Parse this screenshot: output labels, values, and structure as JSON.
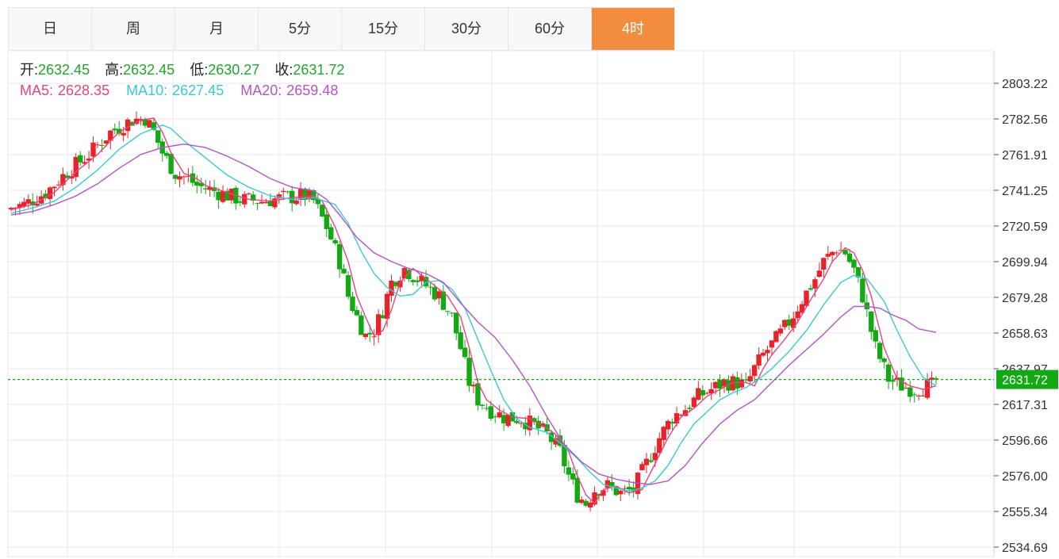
{
  "tabs": [
    {
      "label": "日",
      "active": false
    },
    {
      "label": "周",
      "active": false
    },
    {
      "label": "月",
      "active": false
    },
    {
      "label": "5分",
      "active": false
    },
    {
      "label": "15分",
      "active": false
    },
    {
      "label": "30分",
      "active": false
    },
    {
      "label": "60分",
      "active": false
    },
    {
      "label": "4时",
      "active": true
    }
  ],
  "info": {
    "open_label": "开:",
    "open": "2632.45",
    "high_label": "高:",
    "high": "2632.45",
    "low_label": "低:",
    "low": "2630.27",
    "close_label": "收:",
    "close": "2631.72",
    "ma5_label": "MA5:",
    "ma5": "2628.35",
    "ma10_label": "MA10:",
    "ma10": "2627.45",
    "ma20_label": "MA20:",
    "ma20": "2659.48"
  },
  "colors": {
    "up": "#e8232c",
    "down": "#12a914",
    "ma5": "#e8447c",
    "ma10": "#3cc8d8",
    "ma20": "#b454c8",
    "grid": "#e6eaee",
    "last_price_bg": "#12a914"
  },
  "chart_data": {
    "type": "candlestick",
    "y_ticks": [
      "2803.22",
      "2782.56",
      "2761.91",
      "2741.25",
      "2720.59",
      "2699.94",
      "2679.28",
      "2658.63",
      "2637.97",
      "2617.31",
      "2596.66",
      "2576.00",
      "2555.34",
      "2534.69"
    ],
    "y_range": [
      2534.69,
      2803.22
    ],
    "last_price": "2631.72",
    "series": [
      {
        "name": "MA5",
        "points": [
          [
            0,
            2730
          ],
          [
            5,
            2733
          ],
          [
            10,
            2740
          ],
          [
            15,
            2752
          ],
          [
            20,
            2762
          ],
          [
            25,
            2775
          ],
          [
            30,
            2782
          ],
          [
            33,
            2783
          ],
          [
            35,
            2775
          ],
          [
            37,
            2763
          ],
          [
            40,
            2751
          ],
          [
            43,
            2748
          ],
          [
            45,
            2744
          ],
          [
            50,
            2740
          ],
          [
            55,
            2736
          ],
          [
            60,
            2735
          ],
          [
            65,
            2737
          ],
          [
            70,
            2738
          ],
          [
            72,
            2735
          ],
          [
            75,
            2720
          ],
          [
            78,
            2700
          ],
          [
            80,
            2680
          ],
          [
            82,
            2668
          ],
          [
            84,
            2657
          ],
          [
            86,
            2660
          ],
          [
            88,
            2672
          ],
          [
            90,
            2688
          ],
          [
            93,
            2696
          ],
          [
            95,
            2692
          ],
          [
            98,
            2686
          ],
          [
            101,
            2680
          ],
          [
            104,
            2668
          ],
          [
            106,
            2650
          ],
          [
            108,
            2630
          ],
          [
            110,
            2620
          ],
          [
            113,
            2614
          ],
          [
            116,
            2610
          ],
          [
            120,
            2609
          ],
          [
            123,
            2605
          ],
          [
            126,
            2600
          ],
          [
            129,
            2590
          ],
          [
            131,
            2576
          ],
          [
            133,
            2565
          ],
          [
            135,
            2560
          ],
          [
            137,
            2568
          ],
          [
            140,
            2570
          ],
          [
            143,
            2566
          ],
          [
            146,
            2568
          ],
          [
            149,
            2583
          ],
          [
            152,
            2598
          ],
          [
            155,
            2610
          ],
          [
            158,
            2615
          ],
          [
            161,
            2622
          ],
          [
            164,
            2626
          ],
          [
            167,
            2630
          ],
          [
            170,
            2630
          ],
          [
            172,
            2628
          ],
          [
            174,
            2638
          ],
          [
            176,
            2646
          ],
          [
            179,
            2655
          ],
          [
            182,
            2665
          ],
          [
            185,
            2678
          ],
          [
            188,
            2690
          ],
          [
            190,
            2700
          ],
          [
            193,
            2708
          ],
          [
            195,
            2705
          ],
          [
            197,
            2695
          ],
          [
            199,
            2680
          ],
          [
            202,
            2650
          ],
          [
            205,
            2632
          ],
          [
            208,
            2628
          ],
          [
            211,
            2626
          ],
          [
            214,
            2628
          ]
        ]
      },
      {
        "name": "MA10",
        "points": [
          [
            0,
            2728
          ],
          [
            5,
            2731
          ],
          [
            10,
            2735
          ],
          [
            15,
            2743
          ],
          [
            20,
            2753
          ],
          [
            25,
            2765
          ],
          [
            30,
            2774
          ],
          [
            35,
            2779
          ],
          [
            37,
            2777
          ],
          [
            40,
            2770
          ],
          [
            45,
            2760
          ],
          [
            50,
            2750
          ],
          [
            55,
            2743
          ],
          [
            60,
            2738
          ],
          [
            65,
            2736
          ],
          [
            70,
            2737
          ],
          [
            75,
            2733
          ],
          [
            78,
            2722
          ],
          [
            81,
            2706
          ],
          [
            84,
            2693
          ],
          [
            87,
            2685
          ],
          [
            90,
            2680
          ],
          [
            93,
            2681
          ],
          [
            96,
            2688
          ],
          [
            99,
            2689
          ],
          [
            102,
            2684
          ],
          [
            105,
            2673
          ],
          [
            108,
            2655
          ],
          [
            111,
            2637
          ],
          [
            114,
            2620
          ],
          [
            117,
            2609
          ],
          [
            120,
            2604
          ],
          [
            124,
            2601
          ],
          [
            128,
            2593
          ],
          [
            131,
            2586
          ],
          [
            134,
            2578
          ],
          [
            137,
            2571
          ],
          [
            140,
            2569
          ],
          [
            143,
            2567
          ],
          [
            146,
            2569
          ],
          [
            149,
            2573
          ],
          [
            152,
            2582
          ],
          [
            155,
            2595
          ],
          [
            158,
            2606
          ],
          [
            161,
            2613
          ],
          [
            164,
            2620
          ],
          [
            167,
            2624
          ],
          [
            170,
            2627
          ],
          [
            173,
            2632
          ],
          [
            176,
            2638
          ],
          [
            180,
            2648
          ],
          [
            184,
            2660
          ],
          [
            188,
            2675
          ],
          [
            192,
            2688
          ],
          [
            195,
            2692
          ],
          [
            198,
            2690
          ],
          [
            202,
            2677
          ],
          [
            205,
            2660
          ],
          [
            208,
            2645
          ],
          [
            211,
            2633
          ],
          [
            214,
            2628
          ]
        ]
      },
      {
        "name": "MA20",
        "points": [
          [
            0,
            2727
          ],
          [
            5,
            2729
          ],
          [
            10,
            2733
          ],
          [
            15,
            2738
          ],
          [
            20,
            2745
          ],
          [
            25,
            2754
          ],
          [
            30,
            2762
          ],
          [
            35,
            2766
          ],
          [
            40,
            2768
          ],
          [
            45,
            2766
          ],
          [
            50,
            2761
          ],
          [
            55,
            2755
          ],
          [
            60,
            2748
          ],
          [
            65,
            2743
          ],
          [
            70,
            2741
          ],
          [
            73,
            2736
          ],
          [
            76,
            2727
          ],
          [
            80,
            2714
          ],
          [
            84,
            2705
          ],
          [
            88,
            2700
          ],
          [
            92,
            2696
          ],
          [
            96,
            2693
          ],
          [
            100,
            2688
          ],
          [
            104,
            2676
          ],
          [
            108,
            2665
          ],
          [
            112,
            2656
          ],
          [
            116,
            2643
          ],
          [
            120,
            2628
          ],
          [
            124,
            2610
          ],
          [
            128,
            2594
          ],
          [
            132,
            2584
          ],
          [
            136,
            2577
          ],
          [
            140,
            2574
          ],
          [
            144,
            2572
          ],
          [
            148,
            2571
          ],
          [
            152,
            2573
          ],
          [
            156,
            2582
          ],
          [
            160,
            2595
          ],
          [
            164,
            2606
          ],
          [
            168,
            2614
          ],
          [
            172,
            2620
          ],
          [
            176,
            2630
          ],
          [
            180,
            2640
          ],
          [
            184,
            2649
          ],
          [
            188,
            2658
          ],
          [
            192,
            2668
          ],
          [
            195,
            2674
          ],
          [
            198,
            2674
          ],
          [
            201,
            2673
          ],
          [
            204,
            2669
          ],
          [
            207,
            2666
          ],
          [
            210,
            2661
          ],
          [
            214,
            2659
          ]
        ]
      }
    ]
  }
}
